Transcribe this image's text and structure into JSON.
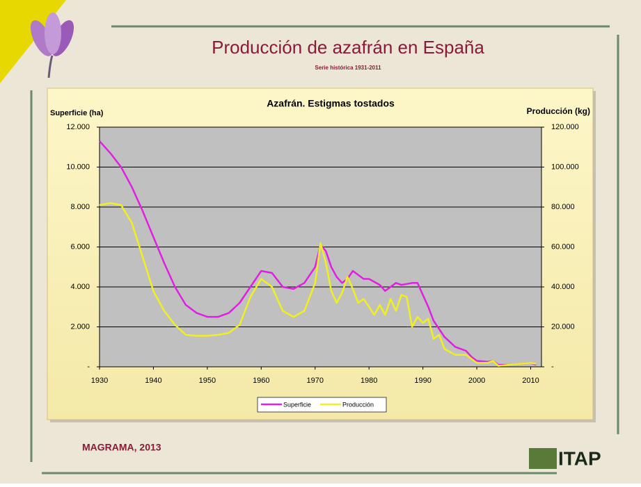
{
  "header": {
    "title": "Producción de azafrán en España",
    "subtitle": "Serie histórica 1931-2011"
  },
  "chart_data": {
    "type": "line",
    "title": "Azafrán. Estigmas tostados",
    "ylabel": "Superficie (ha)",
    "y2label": "Producción (kg)",
    "xlim": [
      1930,
      2012
    ],
    "xticks": [
      1930,
      1940,
      1950,
      1960,
      1970,
      1980,
      1990,
      2000,
      2010
    ],
    "ylim": [
      0,
      12000
    ],
    "yticks": [
      {
        "value": 0,
        "label": "-"
      },
      {
        "value": 2000,
        "label": "2.000"
      },
      {
        "value": 4000,
        "label": "4.000"
      },
      {
        "value": 6000,
        "label": "6.000"
      },
      {
        "value": 8000,
        "label": "8.000"
      },
      {
        "value": 10000,
        "label": "10.000"
      },
      {
        "value": 12000,
        "label": "12.000"
      }
    ],
    "y2lim": [
      0,
      120000
    ],
    "y2ticks": [
      {
        "value": 0,
        "label": "-"
      },
      {
        "value": 20000,
        "label": "20.000"
      },
      {
        "value": 40000,
        "label": "40.000"
      },
      {
        "value": 60000,
        "label": "60.000"
      },
      {
        "value": 80000,
        "label": "80.000"
      },
      {
        "value": 100000,
        "label": "100.000"
      },
      {
        "value": 120000,
        "label": "120.000"
      }
    ],
    "grid": true,
    "legend": "bottom",
    "series": [
      {
        "name": "Superficie",
        "color": "#e020e0",
        "x": [
          1930,
          1932,
          1934,
          1936,
          1938,
          1940,
          1942,
          1944,
          1946,
          1948,
          1950,
          1952,
          1954,
          1956,
          1958,
          1960,
          1962,
          1964,
          1966,
          1968,
          1970,
          1971,
          1972,
          1973,
          1974,
          1975,
          1976,
          1977,
          1978,
          1979,
          1980,
          1982,
          1983,
          1984,
          1985,
          1986,
          1988,
          1989,
          1990,
          1991,
          1992,
          1994,
          1996,
          1998,
          1999,
          2000,
          2002,
          2003,
          2004,
          2006,
          2008,
          2010,
          2011
        ],
        "values": [
          11300,
          10700,
          10000,
          9000,
          7800,
          6500,
          5200,
          4000,
          3100,
          2700,
          2500,
          2500,
          2700,
          3200,
          4000,
          4800,
          4700,
          4000,
          3900,
          4200,
          5000,
          6100,
          5800,
          5000,
          4500,
          4200,
          4400,
          4800,
          4600,
          4400,
          4400,
          4100,
          3800,
          4000,
          4200,
          4100,
          4200,
          4200,
          3600,
          3000,
          2300,
          1500,
          1000,
          800,
          500,
          300,
          250,
          300,
          100,
          100,
          150,
          200,
          100
        ]
      },
      {
        "name": "Producción",
        "color": "#f0f020",
        "axis": "y2",
        "x": [
          1930,
          1932,
          1934,
          1936,
          1938,
          1940,
          1942,
          1944,
          1946,
          1948,
          1950,
          1952,
          1954,
          1956,
          1958,
          1960,
          1962,
          1964,
          1966,
          1968,
          1970,
          1971,
          1972,
          1973,
          1974,
          1975,
          1976,
          1977,
          1978,
          1979,
          1980,
          1981,
          1982,
          1983,
          1984,
          1985,
          1986,
          1987,
          1988,
          1989,
          1990,
          1991,
          1992,
          1993,
          1994,
          1996,
          1998,
          1999,
          2000,
          2002,
          2003,
          2004,
          2006,
          2008,
          2010,
          2011
        ],
        "values": [
          81000,
          82000,
          81000,
          72000,
          55000,
          38000,
          28000,
          21000,
          16000,
          15500,
          15500,
          16000,
          17000,
          21000,
          35000,
          44000,
          40000,
          28000,
          25000,
          28000,
          42000,
          62000,
          52000,
          38000,
          32000,
          37000,
          45000,
          39000,
          32000,
          34000,
          30000,
          26000,
          31000,
          26000,
          34000,
          28000,
          36000,
          35000,
          20000,
          25000,
          22000,
          24000,
          14000,
          16000,
          9000,
          6000,
          6000,
          4000,
          2000,
          2000,
          3000,
          500,
          1000,
          1500,
          2000,
          1500
        ]
      }
    ]
  },
  "footer": {
    "source": "MAGRAMA, 2013",
    "logo": "ITAP"
  }
}
